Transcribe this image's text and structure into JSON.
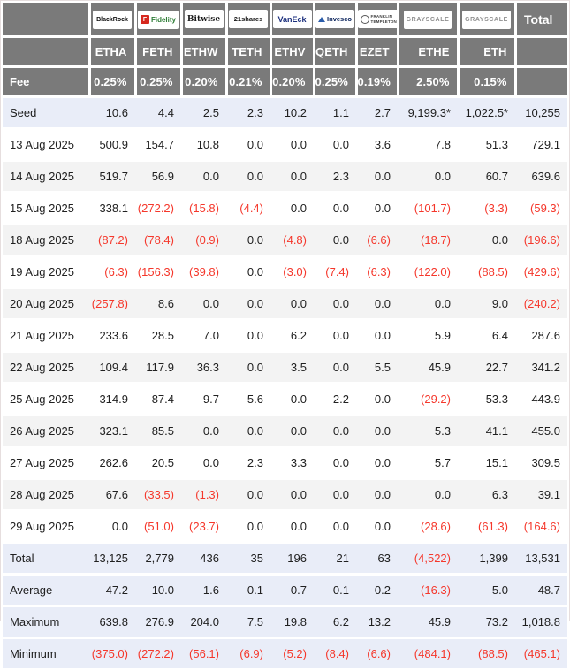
{
  "colors": {
    "header_gray": "#7a7a7a",
    "highlight_blue": "#e9edf8",
    "alt_row_gray": "#f3f3f3",
    "negative_red": "#f5372b",
    "fidelity_red": "#d6281e",
    "vaneck_navy": "#1b2f7d",
    "invesco_navy": "#07205a",
    "grayscale_gray": "#8f8f8f"
  },
  "chart_data": {
    "type": "table",
    "total_column_label": "Total",
    "fee_row_label": "Fee",
    "columns": [
      {
        "provider": "BlackRock",
        "logo": "blackrock",
        "ticker": "ETHA",
        "fee": "0.25%"
      },
      {
        "provider": "Fidelity",
        "logo": "fidelity",
        "logo_icon": "F",
        "ticker": "FETH",
        "fee": "0.25%"
      },
      {
        "provider": "Bitwise",
        "logo": "bitwise",
        "ticker": "ETHW",
        "fee": "0.20%"
      },
      {
        "provider": "21shares",
        "logo": "21shares",
        "ticker": "TETH",
        "fee": "0.21%"
      },
      {
        "provider": "VanEck",
        "logo": "vaneck",
        "ticker": "ETHV",
        "fee": "0.20%"
      },
      {
        "provider": "Invesco",
        "logo": "invesco",
        "ticker": "QETH",
        "fee": "0.25%"
      },
      {
        "provider": "Franklin Templeton",
        "logo": "franklin",
        "ticker": "EZET",
        "fee": "0.19%"
      },
      {
        "provider": "Grayscale",
        "logo": "grayscale",
        "ticker": "ETHE",
        "fee": "2.50%"
      },
      {
        "provider": "Grayscale",
        "logo": "grayscale",
        "ticker": "ETH",
        "fee": "0.15%"
      }
    ],
    "rows": [
      {
        "kind": "seed",
        "label": "Seed",
        "values": [
          "10.6",
          "4.4",
          "2.5",
          "2.3",
          "10.2",
          "1.1",
          "2.7",
          "9,199.3*",
          "1,022.5*",
          "10,255"
        ]
      },
      {
        "kind": "date",
        "label": "13 Aug 2025",
        "values": [
          "500.9",
          "154.7",
          "10.8",
          "0.0",
          "0.0",
          "0.0",
          "3.6",
          "7.8",
          "51.3",
          "729.1"
        ]
      },
      {
        "kind": "date",
        "label": "14 Aug 2025",
        "values": [
          "519.7",
          "56.9",
          "0.0",
          "0.0",
          "0.0",
          "2.3",
          "0.0",
          "0.0",
          "60.7",
          "639.6"
        ]
      },
      {
        "kind": "date",
        "label": "15 Aug 2025",
        "values": [
          "338.1",
          "(272.2)",
          "(15.8)",
          "(4.4)",
          "0.0",
          "0.0",
          "0.0",
          "(101.7)",
          "(3.3)",
          "(59.3)"
        ]
      },
      {
        "kind": "date",
        "label": "18 Aug 2025",
        "values": [
          "(87.2)",
          "(78.4)",
          "(0.9)",
          "0.0",
          "(4.8)",
          "0.0",
          "(6.6)",
          "(18.7)",
          "0.0",
          "(196.6)"
        ]
      },
      {
        "kind": "date",
        "label": "19 Aug 2025",
        "values": [
          "(6.3)",
          "(156.3)",
          "(39.8)",
          "0.0",
          "(3.0)",
          "(7.4)",
          "(6.3)",
          "(122.0)",
          "(88.5)",
          "(429.6)"
        ]
      },
      {
        "kind": "date",
        "label": "20 Aug 2025",
        "values": [
          "(257.8)",
          "8.6",
          "0.0",
          "0.0",
          "0.0",
          "0.0",
          "0.0",
          "0.0",
          "9.0",
          "(240.2)"
        ]
      },
      {
        "kind": "date",
        "label": "21 Aug 2025",
        "values": [
          "233.6",
          "28.5",
          "7.0",
          "0.0",
          "6.2",
          "0.0",
          "0.0",
          "5.9",
          "6.4",
          "287.6"
        ]
      },
      {
        "kind": "date",
        "label": "22 Aug 2025",
        "values": [
          "109.4",
          "117.9",
          "36.3",
          "0.0",
          "3.5",
          "0.0",
          "5.5",
          "45.9",
          "22.7",
          "341.2"
        ]
      },
      {
        "kind": "date",
        "label": "25 Aug 2025",
        "values": [
          "314.9",
          "87.4",
          "9.7",
          "5.6",
          "0.0",
          "2.2",
          "0.0",
          "(29.2)",
          "53.3",
          "443.9"
        ]
      },
      {
        "kind": "date",
        "label": "26 Aug 2025",
        "values": [
          "323.1",
          "85.5",
          "0.0",
          "0.0",
          "0.0",
          "0.0",
          "0.0",
          "5.3",
          "41.1",
          "455.0"
        ]
      },
      {
        "kind": "date",
        "label": "27 Aug 2025",
        "values": [
          "262.6",
          "20.5",
          "0.0",
          "2.3",
          "3.3",
          "0.0",
          "0.0",
          "5.7",
          "15.1",
          "309.5"
        ]
      },
      {
        "kind": "date",
        "label": "28 Aug 2025",
        "values": [
          "67.6",
          "(33.5)",
          "(1.3)",
          "0.0",
          "0.0",
          "0.0",
          "0.0",
          "0.0",
          "6.3",
          "39.1"
        ]
      },
      {
        "kind": "date",
        "label": "29 Aug 2025",
        "values": [
          "0.0",
          "(51.0)",
          "(23.7)",
          "0.0",
          "0.0",
          "0.0",
          "0.0",
          "(28.6)",
          "(61.3)",
          "(164.6)"
        ]
      },
      {
        "kind": "summary",
        "label": "Total",
        "values": [
          "13,125",
          "2,779",
          "436",
          "35",
          "196",
          "21",
          "63",
          "(4,522)",
          "1,399",
          "13,531"
        ]
      },
      {
        "kind": "summary",
        "label": "Average",
        "values": [
          "47.2",
          "10.0",
          "1.6",
          "0.1",
          "0.7",
          "0.1",
          "0.2",
          "(16.3)",
          "5.0",
          "48.7"
        ]
      },
      {
        "kind": "summary",
        "label": "Maximum",
        "values": [
          "639.8",
          "276.9",
          "204.0",
          "7.5",
          "19.8",
          "6.2",
          "13.2",
          "45.9",
          "73.2",
          "1,018.8"
        ]
      },
      {
        "kind": "summary",
        "label": "Minimum",
        "values": [
          "(375.0)",
          "(272.2)",
          "(56.1)",
          "(6.9)",
          "(5.2)",
          "(8.4)",
          "(6.6)",
          "(484.1)",
          "(88.5)",
          "(465.1)"
        ]
      }
    ]
  }
}
